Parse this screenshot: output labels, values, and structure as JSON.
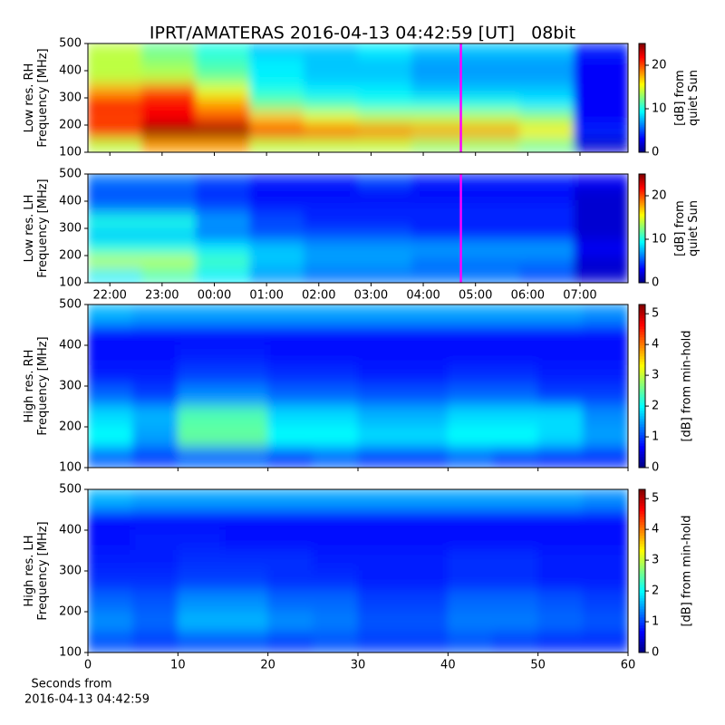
{
  "chart_data": [
    {
      "type": "heatmap",
      "title": "IPRT/AMATERAS 2016-04-13 04:42:59 [UT]   08bit",
      "ylabel": [
        "Low res. RH",
        "Frequency [MHz]"
      ],
      "xlim": [
        21.58,
        31.92
      ],
      "ylim": [
        100,
        500
      ],
      "yticks": [
        100,
        200,
        300,
        400,
        500
      ],
      "colormap": "jet",
      "clim": [
        0,
        25
      ],
      "cticks": [
        0,
        10,
        20
      ],
      "clabel": [
        "[dB] from",
        "quiet Sun"
      ],
      "marker_x": 28.72,
      "marker_color": "#ff00ff",
      "values": [
        [
          14,
          12,
          10,
          8,
          8,
          9,
          8,
          8,
          8,
          4
        ],
        [
          14,
          13,
          11,
          9,
          8,
          8,
          7,
          7,
          7,
          3
        ],
        [
          14,
          14,
          12,
          9,
          8,
          8,
          7,
          7,
          7,
          3
        ],
        [
          18,
          20,
          15,
          10,
          9,
          9,
          8,
          8,
          8,
          3
        ],
        [
          22,
          22,
          18,
          12,
          11,
          10,
          10,
          10,
          9,
          3
        ],
        [
          20,
          22,
          20,
          17,
          15,
          14,
          14,
          14,
          13,
          3
        ],
        [
          22,
          25,
          25,
          22,
          20,
          19,
          18,
          18,
          16,
          4
        ],
        [
          14,
          18,
          18,
          14,
          14,
          14,
          13,
          13,
          12,
          2
        ]
      ]
    },
    {
      "type": "heatmap",
      "ylabel": [
        "Low res. LH",
        "Frequency [MHz]"
      ],
      "xlim": [
        21.58,
        31.92
      ],
      "ylim": [
        100,
        500
      ],
      "yticks": [
        100,
        200,
        300,
        400,
        500
      ],
      "xticks": [
        {
          "value": 22,
          "label": "22:00"
        },
        {
          "value": 23,
          "label": "23:00"
        },
        {
          "value": 24,
          "label": "00:00"
        },
        {
          "value": 25,
          "label": "01:00"
        },
        {
          "value": 26,
          "label": "02:00"
        },
        {
          "value": 27,
          "label": "03:00"
        },
        {
          "value": 28,
          "label": "04:00"
        },
        {
          "value": 29,
          "label": "05:00"
        },
        {
          "value": 30,
          "label": "06:00"
        },
        {
          "value": 31,
          "label": "07:00"
        }
      ],
      "colormap": "jet",
      "clim": [
        0,
        25
      ],
      "cticks": [
        0,
        10,
        20
      ],
      "clabel": [
        "[dB] from",
        "quiet Sun"
      ],
      "marker_x": 28.72,
      "marker_color": "#ff00ff",
      "values": [
        [
          6,
          6,
          5,
          4,
          4,
          5,
          4,
          4,
          4,
          3
        ],
        [
          5,
          5,
          4,
          3,
          3,
          3,
          3,
          3,
          3,
          2
        ],
        [
          6,
          6,
          5,
          4,
          4,
          4,
          4,
          4,
          4,
          2
        ],
        [
          10,
          10,
          7,
          5,
          4,
          4,
          4,
          4,
          4,
          2
        ],
        [
          8,
          8,
          6,
          5,
          5,
          5,
          4,
          4,
          4,
          2
        ],
        [
          10,
          10,
          9,
          8,
          7,
          7,
          7,
          7,
          7,
          3
        ],
        [
          14,
          14,
          11,
          8,
          7,
          7,
          6,
          6,
          6,
          2
        ],
        [
          9,
          11,
          9,
          7,
          6,
          6,
          6,
          6,
          5,
          2
        ]
      ]
    },
    {
      "type": "heatmap",
      "ylabel": [
        "High res. RH",
        "Frequency [MHz]"
      ],
      "xlim": [
        0,
        60
      ],
      "ylim": [
        100,
        500
      ],
      "yticks": [
        100,
        200,
        300,
        400,
        500
      ],
      "colormap": "jet",
      "clim": [
        0,
        5.3
      ],
      "cticks": [
        0,
        1,
        2,
        3,
        4,
        5
      ],
      "clabel": [
        "[dB] from min-hold"
      ],
      "values": [
        [
          1.6,
          1.5,
          1.5,
          1.5,
          1.5,
          1.5,
          1.5,
          1.5,
          1.5,
          1.5,
          1.5,
          1.4
        ],
        [
          0.7,
          0.7,
          0.7,
          0.7,
          0.7,
          0.7,
          0.7,
          0.7,
          0.7,
          0.7,
          0.7,
          0.7
        ],
        [
          0.7,
          0.7,
          0.8,
          0.8,
          0.7,
          0.7,
          0.7,
          0.7,
          0.7,
          0.7,
          0.7,
          0.7
        ],
        [
          0.8,
          0.8,
          1.0,
          1.0,
          0.9,
          0.9,
          0.8,
          0.8,
          0.9,
          0.9,
          0.8,
          0.8
        ],
        [
          1.2,
          1.0,
          1.4,
          1.4,
          1.2,
          1.2,
          1.1,
          1.1,
          1.2,
          1.2,
          1.0,
          1.0
        ],
        [
          1.8,
          1.6,
          2.4,
          2.4,
          1.8,
          1.8,
          1.6,
          1.6,
          1.8,
          1.8,
          1.8,
          1.4
        ],
        [
          2.0,
          1.5,
          2.5,
          2.5,
          2.0,
          2.0,
          1.8,
          1.8,
          2.0,
          2.0,
          1.8,
          1.5
        ],
        [
          1.2,
          1.0,
          1.2,
          1.2,
          1.0,
          1.2,
          1.0,
          1.0,
          1.2,
          1.0,
          0.9,
          0.9
        ]
      ]
    },
    {
      "type": "heatmap",
      "ylabel": [
        "High res. LH",
        "Frequency [MHz]"
      ],
      "xlim": [
        0,
        60
      ],
      "ylim": [
        100,
        500
      ],
      "yticks": [
        100,
        200,
        300,
        400,
        500
      ],
      "xticks": [
        0,
        10,
        20,
        30,
        40,
        50,
        60
      ],
      "xlabel": [
        "Seconds from",
        "2016-04-13 04:42:59"
      ],
      "colormap": "jet",
      "clim": [
        0,
        5.3
      ],
      "cticks": [
        0,
        1,
        2,
        3,
        4,
        5
      ],
      "clabel": [
        "[dB] from min-hold"
      ],
      "values": [
        [
          1.6,
          1.5,
          1.5,
          1.5,
          1.5,
          1.5,
          1.5,
          1.5,
          1.5,
          1.5,
          1.5,
          1.4
        ],
        [
          0.7,
          0.7,
          0.7,
          0.7,
          0.7,
          0.7,
          0.7,
          0.7,
          0.7,
          0.7,
          0.7,
          0.7
        ],
        [
          0.7,
          0.8,
          0.8,
          0.7,
          0.7,
          0.7,
          0.7,
          0.7,
          0.7,
          0.7,
          0.7,
          0.7
        ],
        [
          0.8,
          0.8,
          0.9,
          0.9,
          0.9,
          0.8,
          0.8,
          0.8,
          0.9,
          0.9,
          0.8,
          0.8
        ],
        [
          0.9,
          0.9,
          1.0,
          1.0,
          0.9,
          0.9,
          0.8,
          0.8,
          0.9,
          0.9,
          0.8,
          0.8
        ],
        [
          1.2,
          1.1,
          1.4,
          1.4,
          1.2,
          1.2,
          1.0,
          1.0,
          1.2,
          1.2,
          1.1,
          1.0
        ],
        [
          1.4,
          1.2,
          1.6,
          1.6,
          1.4,
          1.3,
          1.1,
          1.1,
          1.3,
          1.3,
          1.2,
          1.1
        ],
        [
          1.1,
          1.0,
          1.1,
          1.1,
          1.0,
          1.1,
          1.0,
          1.0,
          1.1,
          1.0,
          0.9,
          0.9
        ]
      ]
    }
  ]
}
